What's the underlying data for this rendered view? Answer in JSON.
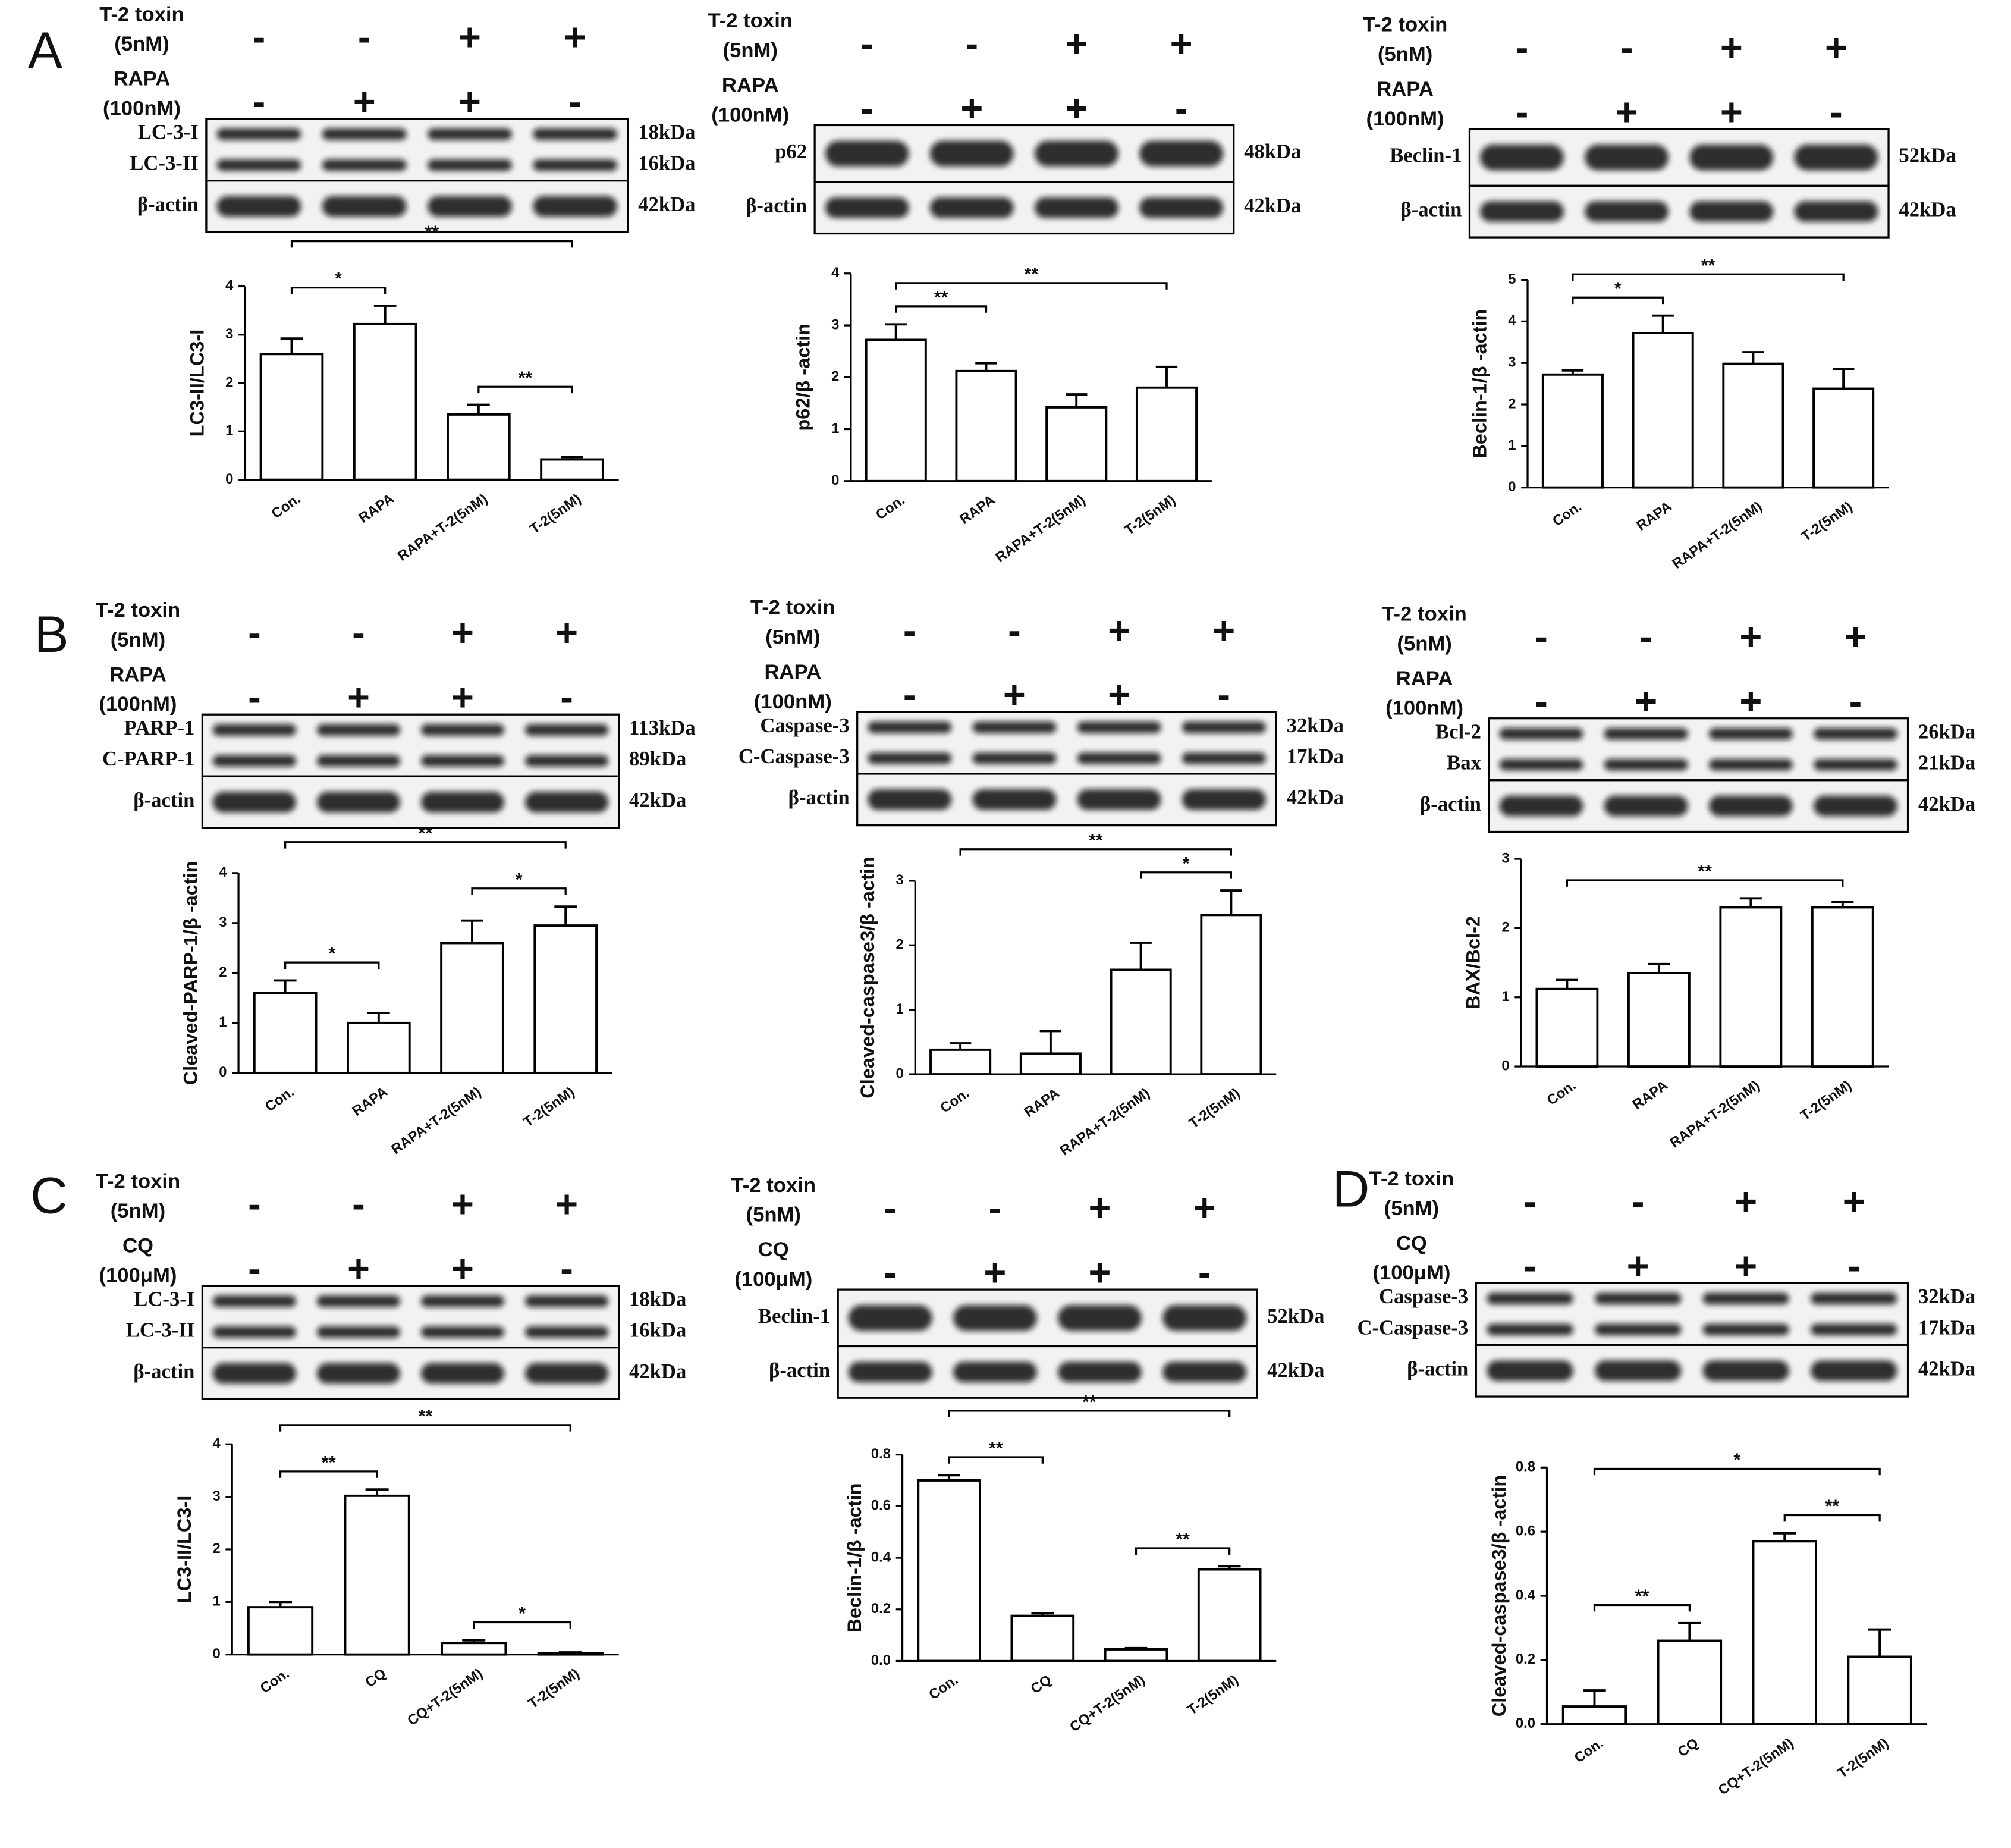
{
  "panel_letters": [
    "A",
    "B",
    "C",
    "D"
  ],
  "blots": [
    {
      "treatments": [
        {
          "name": "T-2 toxin",
          "dose": "(5nM)",
          "signs": [
            "-",
            "-",
            "+",
            "+"
          ]
        },
        {
          "name": "RAPA",
          "dose": "(100nM)",
          "signs": [
            "-",
            "+",
            "+",
            "-"
          ]
        }
      ],
      "bands": [
        {
          "name": "LC-3-I",
          "size": "18kDa"
        },
        {
          "name": "LC-3-II",
          "size": "16kDa"
        },
        {
          "name": "β-actin",
          "size": "42kDa"
        }
      ]
    },
    {
      "treatments": [
        {
          "name": "T-2 toxin",
          "dose": "(5nM)",
          "signs": [
            "-",
            "-",
            "+",
            "+"
          ]
        },
        {
          "name": "RAPA",
          "dose": "(100nM)",
          "signs": [
            "-",
            "+",
            "+",
            "-"
          ]
        }
      ],
      "bands": [
        {
          "name": "p62",
          "size": "48kDa"
        },
        {
          "name": "β-actin",
          "size": "42kDa"
        }
      ]
    },
    {
      "treatments": [
        {
          "name": "T-2 toxin",
          "dose": "(5nM)",
          "signs": [
            "-",
            "-",
            "+",
            "+"
          ]
        },
        {
          "name": "RAPA",
          "dose": "(100nM)",
          "signs": [
            "-",
            "+",
            "+",
            "-"
          ]
        }
      ],
      "bands": [
        {
          "name": "Beclin-1",
          "size": "52kDa"
        },
        {
          "name": "β-actin",
          "size": "42kDa"
        }
      ]
    },
    {
      "treatments": [
        {
          "name": "T-2 toxin",
          "dose": "(5nM)",
          "signs": [
            "-",
            "-",
            "+",
            "+"
          ]
        },
        {
          "name": "RAPA",
          "dose": "(100nM)",
          "signs": [
            "-",
            "+",
            "+",
            "-"
          ]
        }
      ],
      "bands": [
        {
          "name": "PARP-1",
          "size": "113kDa"
        },
        {
          "name": "C-PARP-1",
          "size": "89kDa"
        },
        {
          "name": "β-actin",
          "size": "42kDa"
        }
      ]
    },
    {
      "treatments": [
        {
          "name": "T-2 toxin",
          "dose": "(5nM)",
          "signs": [
            "-",
            "-",
            "+",
            "+"
          ]
        },
        {
          "name": "RAPA",
          "dose": "(100nM)",
          "signs": [
            "-",
            "+",
            "+",
            "-"
          ]
        }
      ],
      "bands": [
        {
          "name": "Caspase-3",
          "size": "32kDa"
        },
        {
          "name": "C-Caspase-3",
          "size": "17kDa"
        },
        {
          "name": "β-actin",
          "size": "42kDa"
        }
      ]
    },
    {
      "treatments": [
        {
          "name": "T-2 toxin",
          "dose": "(5nM)",
          "signs": [
            "-",
            "-",
            "+",
            "+"
          ]
        },
        {
          "name": "RAPA",
          "dose": "(100nM)",
          "signs": [
            "-",
            "+",
            "+",
            "-"
          ]
        }
      ],
      "bands": [
        {
          "name": "Bcl-2",
          "size": "26kDa"
        },
        {
          "name": "Bax",
          "size": "21kDa"
        },
        {
          "name": "β-actin",
          "size": "42kDa"
        }
      ]
    },
    {
      "treatments": [
        {
          "name": "T-2 toxin",
          "dose": "(5nM)",
          "signs": [
            "-",
            "-",
            "+",
            "+"
          ]
        },
        {
          "name": "CQ",
          "dose": "(100μM)",
          "signs": [
            "-",
            "+",
            "+",
            "-"
          ]
        }
      ],
      "bands": [
        {
          "name": "LC-3-I",
          "size": "18kDa"
        },
        {
          "name": "LC-3-II",
          "size": "16kDa"
        },
        {
          "name": "β-actin",
          "size": "42kDa"
        }
      ]
    },
    {
      "treatments": [
        {
          "name": "T-2 toxin",
          "dose": "(5nM)",
          "signs": [
            "-",
            "-",
            "+",
            "+"
          ]
        },
        {
          "name": "CQ",
          "dose": "(100μM)",
          "signs": [
            "-",
            "+",
            "+",
            "-"
          ]
        }
      ],
      "bands": [
        {
          "name": "Beclin-1",
          "size": "52kDa"
        },
        {
          "name": "β-actin",
          "size": "42kDa"
        }
      ]
    },
    {
      "treatments": [
        {
          "name": "T-2 toxin",
          "dose": "(5nM)",
          "signs": [
            "-",
            "-",
            "+",
            "+"
          ]
        },
        {
          "name": "CQ",
          "dose": "(100μM)",
          "signs": [
            "-",
            "+",
            "+",
            "-"
          ]
        }
      ],
      "bands": [
        {
          "name": "Caspase-3",
          "size": "32kDa"
        },
        {
          "name": "C-Caspase-3",
          "size": "17kDa"
        },
        {
          "name": "β-actin",
          "size": "42kDa"
        }
      ]
    }
  ],
  "chart_data": [
    {
      "type": "bar",
      "ylabel": "LC3-II/LC3-I",
      "categories": [
        "Con.",
        "RAPA",
        "RAPA+T-2(5nM)",
        "T-2(5nM)"
      ],
      "values": [
        2.6,
        3.22,
        1.35,
        0.42
      ],
      "errors": [
        0.32,
        0.38,
        0.2,
        0.05
      ],
      "ylim": [
        0,
        4
      ],
      "yticks": [
        0,
        1,
        2,
        3,
        4
      ],
      "comparisons": [
        {
          "pair": [
            "Con.",
            "RAPA"
          ],
          "label": "*"
        },
        {
          "pair": [
            "Con.",
            "T-2(5nM)"
          ],
          "label": "**"
        },
        {
          "pair": [
            "RAPA+T-2(5nM)",
            "T-2(5nM)"
          ],
          "label": "**"
        }
      ]
    },
    {
      "type": "bar",
      "ylabel": "p62/β -actin",
      "categories": [
        "Con.",
        "RAPA",
        "RAPA+T-2(5nM)",
        "T-2(5nM)"
      ],
      "values": [
        2.72,
        2.12,
        1.42,
        1.8
      ],
      "errors": [
        0.3,
        0.15,
        0.25,
        0.4
      ],
      "ylim": [
        0,
        4
      ],
      "yticks": [
        0,
        1,
        2,
        3,
        4
      ],
      "comparisons": [
        {
          "pair": [
            "Con.",
            "RAPA"
          ],
          "label": "**"
        },
        {
          "pair": [
            "Con.",
            "T-2(5nM)"
          ],
          "label": "**"
        }
      ]
    },
    {
      "type": "bar",
      "ylabel": "Beclin-1/β -actin",
      "categories": [
        "Con.",
        "RAPA",
        "RAPA+T-2(5nM)",
        "T-2(5nM)"
      ],
      "values": [
        2.72,
        3.72,
        2.98,
        2.38
      ],
      "errors": [
        0.1,
        0.42,
        0.28,
        0.48
      ],
      "ylim": [
        0,
        5
      ],
      "yticks": [
        0,
        1,
        2,
        3,
        4,
        5
      ],
      "comparisons": [
        {
          "pair": [
            "Con.",
            "RAPA"
          ],
          "label": "*"
        },
        {
          "pair": [
            "Con.",
            "T-2(5nM)"
          ],
          "label": "**"
        }
      ]
    },
    {
      "type": "bar",
      "ylabel": "Cleaved-PARP-1/β -actin",
      "categories": [
        "Con.",
        "RAPA",
        "RAPA+T-2(5nM)",
        "T-2(5nM)"
      ],
      "values": [
        1.6,
        1.0,
        2.6,
        2.95
      ],
      "errors": [
        0.25,
        0.2,
        0.45,
        0.38
      ],
      "ylim": [
        0,
        4
      ],
      "yticks": [
        0,
        1,
        2,
        3,
        4
      ],
      "comparisons": [
        {
          "pair": [
            "Con.",
            "RAPA"
          ],
          "label": "*"
        },
        {
          "pair": [
            "Con.",
            "T-2(5nM)"
          ],
          "label": "**"
        },
        {
          "pair": [
            "RAPA+T-2(5nM)",
            "T-2(5nM)"
          ],
          "label": "*"
        }
      ]
    },
    {
      "type": "bar",
      "ylabel": "Cleaved-caspase3/β -actin",
      "categories": [
        "Con.",
        "RAPA",
        "RAPA+T-2(5nM)",
        "T-2(5nM)"
      ],
      "values": [
        0.38,
        0.32,
        1.62,
        2.47
      ],
      "errors": [
        0.1,
        0.35,
        0.42,
        0.38
      ],
      "ylim": [
        0,
        3
      ],
      "yticks": [
        0,
        1,
        2,
        3
      ],
      "comparisons": [
        {
          "pair": [
            "Con.",
            "T-2(5nM)"
          ],
          "label": "**"
        },
        {
          "pair": [
            "RAPA+T-2(5nM)",
            "T-2(5nM)"
          ],
          "label": "*"
        }
      ]
    },
    {
      "type": "bar",
      "ylabel": "BAX/Bcl-2",
      "categories": [
        "Con.",
        "RAPA",
        "RAPA+T-2(5nM)",
        "T-2(5nM)"
      ],
      "values": [
        1.12,
        1.35,
        2.3,
        2.3
      ],
      "errors": [
        0.13,
        0.13,
        0.13,
        0.08
      ],
      "ylim": [
        0,
        3
      ],
      "yticks": [
        0,
        1,
        2,
        3
      ],
      "comparisons": [
        {
          "pair": [
            "Con.",
            "T-2(5nM)"
          ],
          "label": "**"
        }
      ]
    },
    {
      "type": "bar",
      "ylabel": "LC3-II/LC3-I",
      "categories": [
        "Con.",
        "CQ",
        "CQ+T-2(5nM)",
        "T-2(5nM)"
      ],
      "values": [
        0.9,
        3.02,
        0.22,
        0.03
      ],
      "errors": [
        0.1,
        0.12,
        0.05,
        0.01
      ],
      "ylim": [
        0,
        4
      ],
      "yticks": [
        0,
        1,
        2,
        3,
        4
      ],
      "comparisons": [
        {
          "pair": [
            "Con.",
            "CQ"
          ],
          "label": "**"
        },
        {
          "pair": [
            "Con.",
            "T-2(5nM)"
          ],
          "label": "**"
        },
        {
          "pair": [
            "CQ+T-2(5nM)",
            "T-2(5nM)"
          ],
          "label": "*"
        }
      ]
    },
    {
      "type": "bar",
      "ylabel": "Beclin-1/β -actin",
      "categories": [
        "Con.",
        "CQ",
        "CQ+T-2(5nM)",
        "T-2(5nM)"
      ],
      "values": [
        0.7,
        0.175,
        0.045,
        0.355
      ],
      "errors": [
        0.02,
        0.01,
        0.005,
        0.012
      ],
      "ylim": [
        0,
        0.8
      ],
      "yticks": [
        {
          "value": 0,
          "label": "0.0"
        },
        0.2,
        0.4,
        0.6,
        0.8
      ],
      "comparisons": [
        {
          "pair": [
            "Con.",
            "CQ"
          ],
          "label": "**"
        },
        {
          "pair": [
            "Con.",
            "T-2(5nM)"
          ],
          "label": "**"
        },
        {
          "pair": [
            "CQ+T-2(5nM)",
            "T-2(5nM)"
          ],
          "label": "**"
        }
      ]
    },
    {
      "type": "bar",
      "ylabel": "Cleaved-caspase3/β -actin",
      "categories": [
        "Con.",
        "CQ",
        "CQ+T-2(5nM)",
        "T-2(5nM)"
      ],
      "values": [
        0.055,
        0.26,
        0.57,
        0.21
      ],
      "errors": [
        0.05,
        0.055,
        0.025,
        0.085
      ],
      "ylim": [
        0,
        0.8
      ],
      "yticks": [
        {
          "value": 0,
          "label": "0.0"
        },
        0.2,
        0.4,
        0.6,
        0.8
      ],
      "comparisons": [
        {
          "pair": [
            "Con.",
            "CQ"
          ],
          "label": "**"
        },
        {
          "pair": [
            "Con.",
            "T-2(5nM)"
          ],
          "label": "*"
        },
        {
          "pair": [
            "CQ+T-2(5nM)",
            "T-2(5nM)"
          ],
          "label": "**"
        }
      ]
    }
  ]
}
